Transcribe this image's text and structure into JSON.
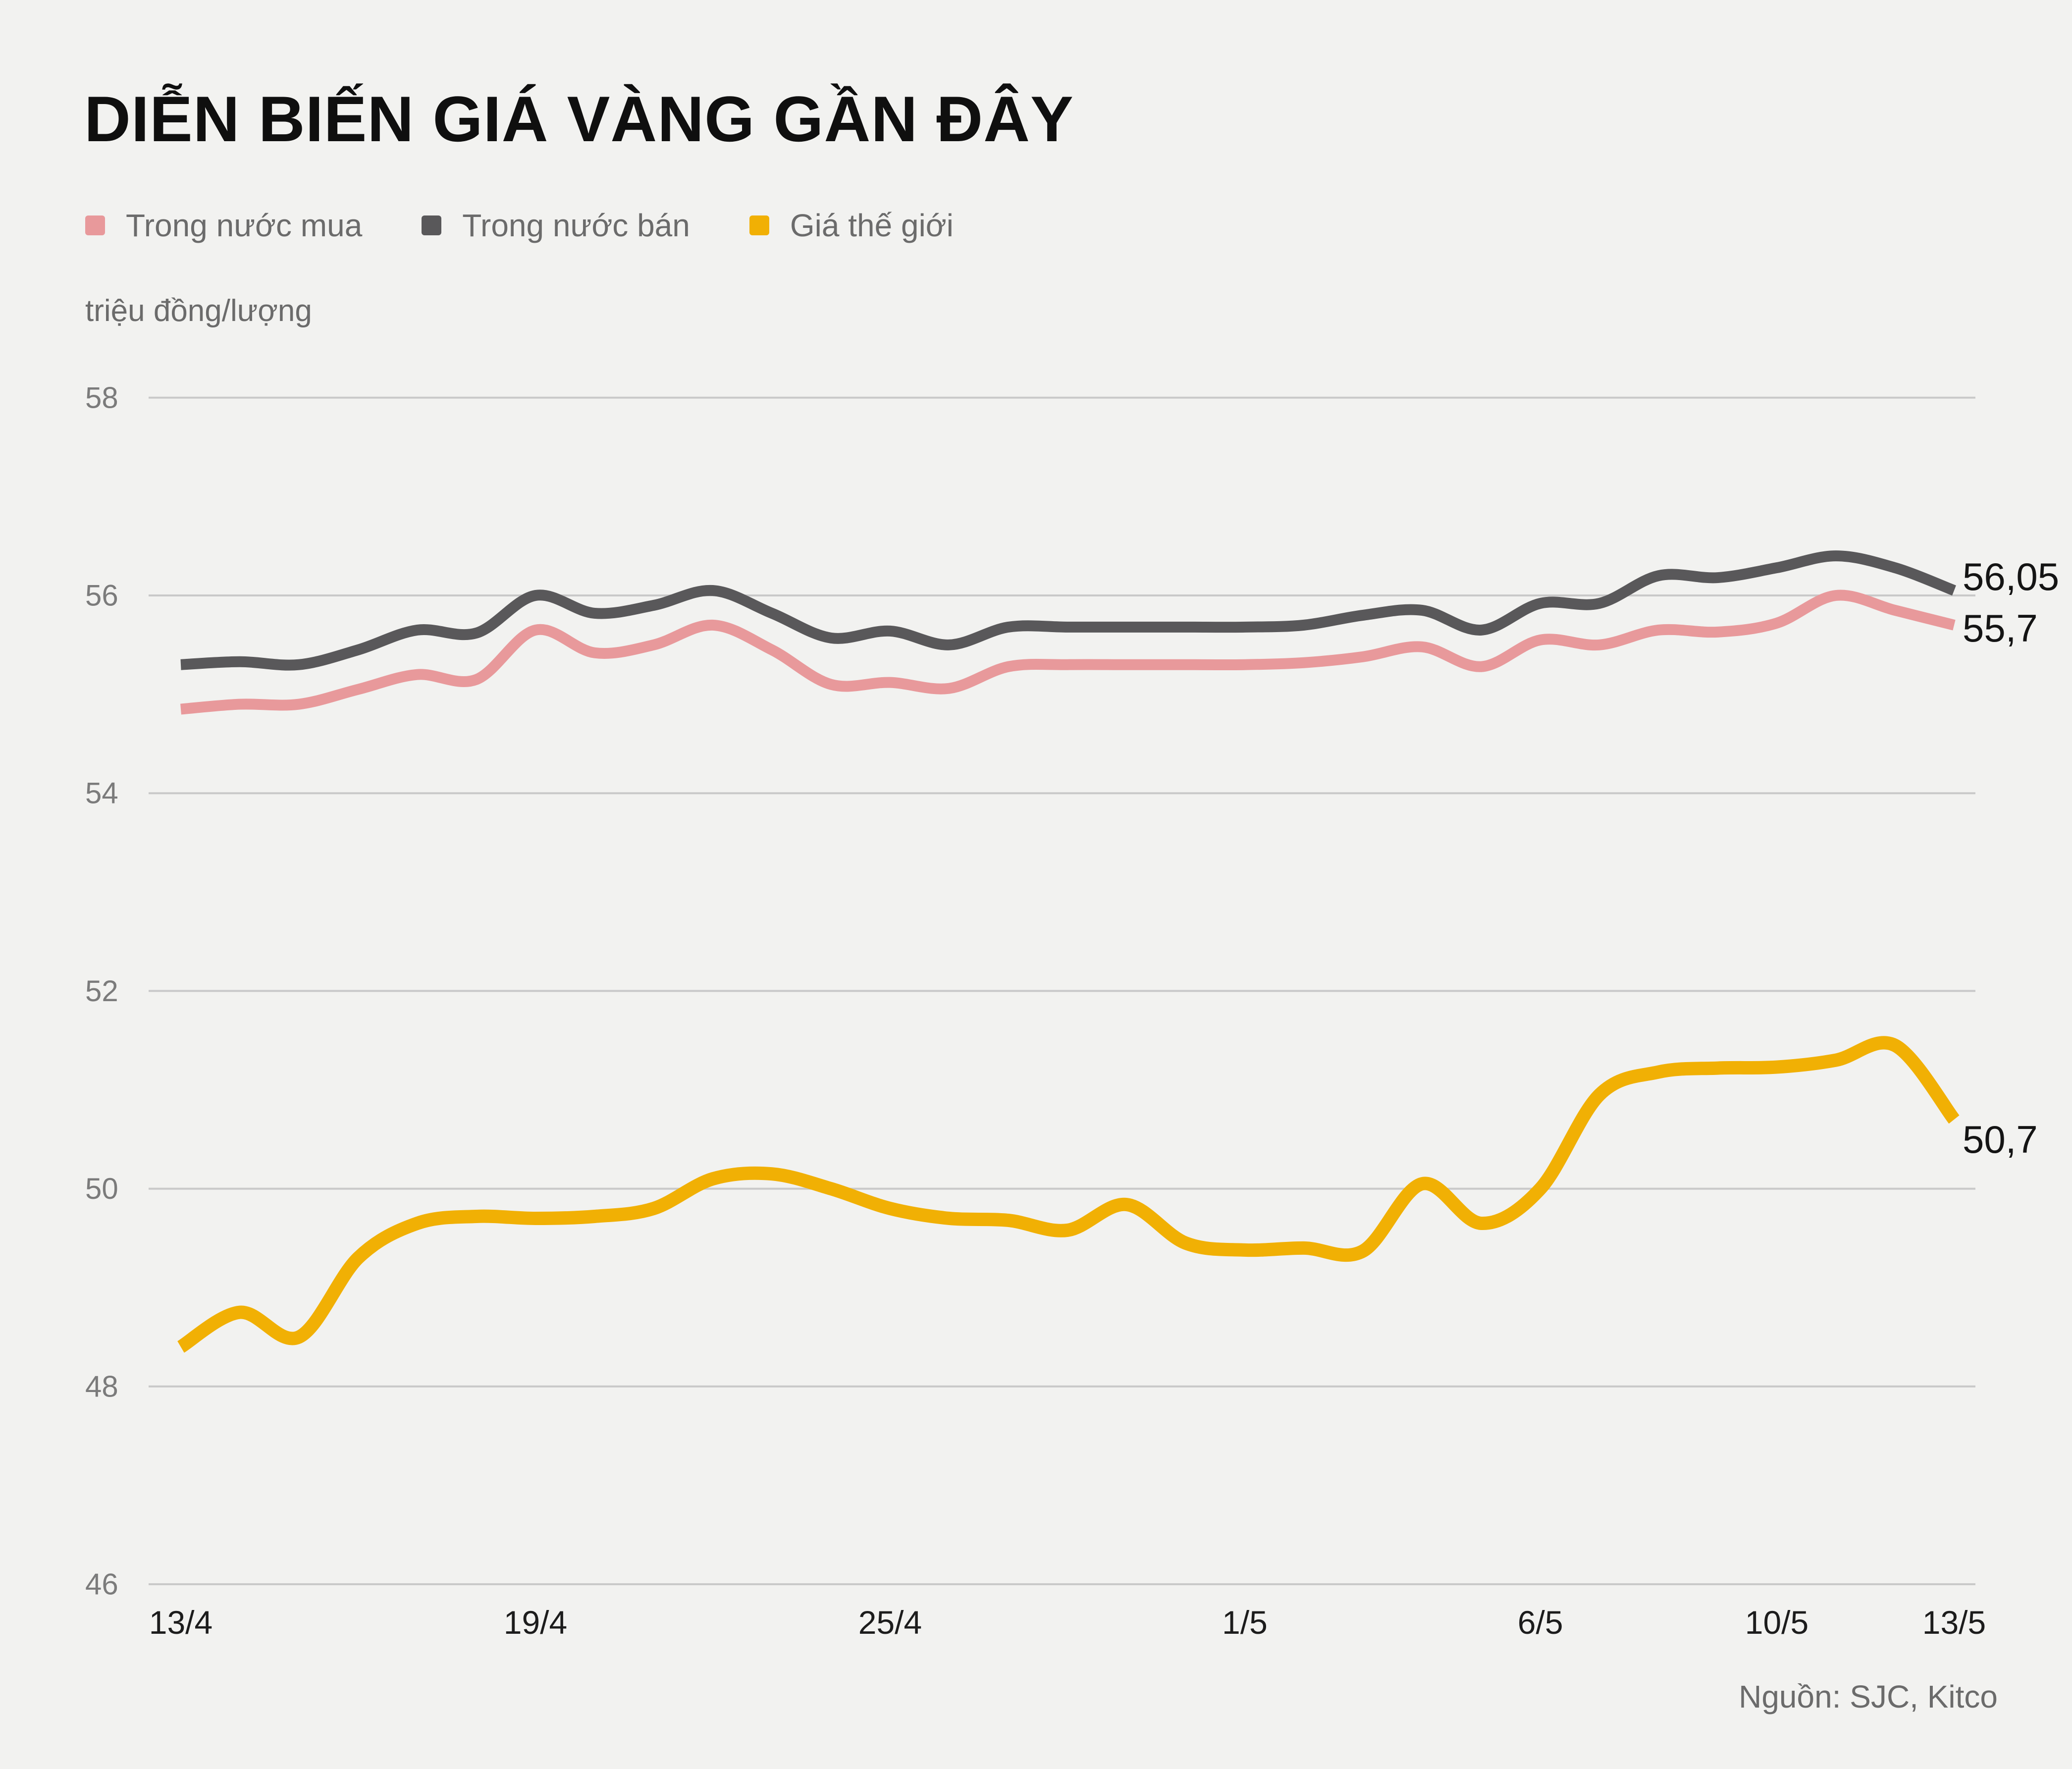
{
  "title": "DIỄN BIẾN GIÁ VÀNG GẦN ĐÂY",
  "unit_label": "triệu đồng/lượng",
  "source": "Nguồn: SJC, Kitco",
  "colors": {
    "background": "#f2f2f0",
    "gridline": "#c9c9c9",
    "domestic_buy": "#e8999b",
    "domestic_sell": "#59585a",
    "world_price": "#f1b004"
  },
  "legend": {
    "items": [
      {
        "label": "Trong nước mua",
        "color": "#e8999b"
      },
      {
        "label": "Trong nước bán",
        "color": "#59585a"
      },
      {
        "label": "Giá thế giới",
        "color": "#f1b004"
      }
    ]
  },
  "chart_data": {
    "type": "line",
    "title": "DIỄN BIẾN GIÁ VÀNG GẦN ĐÂY",
    "ylabel": "triệu đồng/lượng",
    "ylim": [
      46,
      58
    ],
    "y_ticks": [
      58,
      56,
      54,
      52,
      50,
      48,
      46
    ],
    "grid": true,
    "legend_position": "top-left",
    "x": [
      "13/4",
      "14/4",
      "15/4",
      "16/4",
      "17/4",
      "18/4",
      "19/4",
      "20/4",
      "21/4",
      "22/4",
      "23/4",
      "24/4",
      "25/4",
      "26/4",
      "27/4",
      "28/4",
      "29/4",
      "30/4",
      "1/5",
      "2/5",
      "3/5",
      "4/5",
      "5/5",
      "6/5",
      "7/5",
      "8/5",
      "9/5",
      "10/5",
      "11/5",
      "12/5",
      "13/5"
    ],
    "x_tick_labels": [
      "13/4",
      "19/4",
      "25/4",
      "1/5",
      "6/5",
      "10/5",
      "13/5"
    ],
    "series": [
      {
        "name": "Trong nước mua",
        "color": "#e8999b",
        "end_label": "55,7",
        "values": [
          54.85,
          54.9,
          54.9,
          55.05,
          55.2,
          55.15,
          55.65,
          55.42,
          55.5,
          55.7,
          55.45,
          55.1,
          55.12,
          55.06,
          55.28,
          55.3,
          55.3,
          55.3,
          55.3,
          55.32,
          55.38,
          55.48,
          55.28,
          55.55,
          55.5,
          55.65,
          55.63,
          55.72,
          56.0,
          55.85,
          55.7
        ]
      },
      {
        "name": "Trong nước bán",
        "color": "#59585a",
        "end_label": "56,05",
        "values": [
          55.3,
          55.33,
          55.3,
          55.45,
          55.65,
          55.62,
          56.0,
          55.82,
          55.9,
          56.05,
          55.82,
          55.57,
          55.64,
          55.5,
          55.68,
          55.68,
          55.68,
          55.68,
          55.68,
          55.7,
          55.8,
          55.85,
          55.65,
          55.92,
          55.92,
          56.2,
          56.18,
          56.28,
          56.4,
          56.28,
          56.05
        ]
      },
      {
        "name": "Giá thế giới",
        "color": "#f1b004",
        "end_label": "50,7",
        "values": [
          48.4,
          48.75,
          48.5,
          49.3,
          49.65,
          49.72,
          49.7,
          49.72,
          49.8,
          50.1,
          50.15,
          50.0,
          49.8,
          49.7,
          49.68,
          49.58,
          49.84,
          49.45,
          49.38,
          49.4,
          49.37,
          50.05,
          49.65,
          50.0,
          50.95,
          51.18,
          51.22,
          51.23,
          51.3,
          51.45,
          50.7
        ]
      }
    ]
  }
}
